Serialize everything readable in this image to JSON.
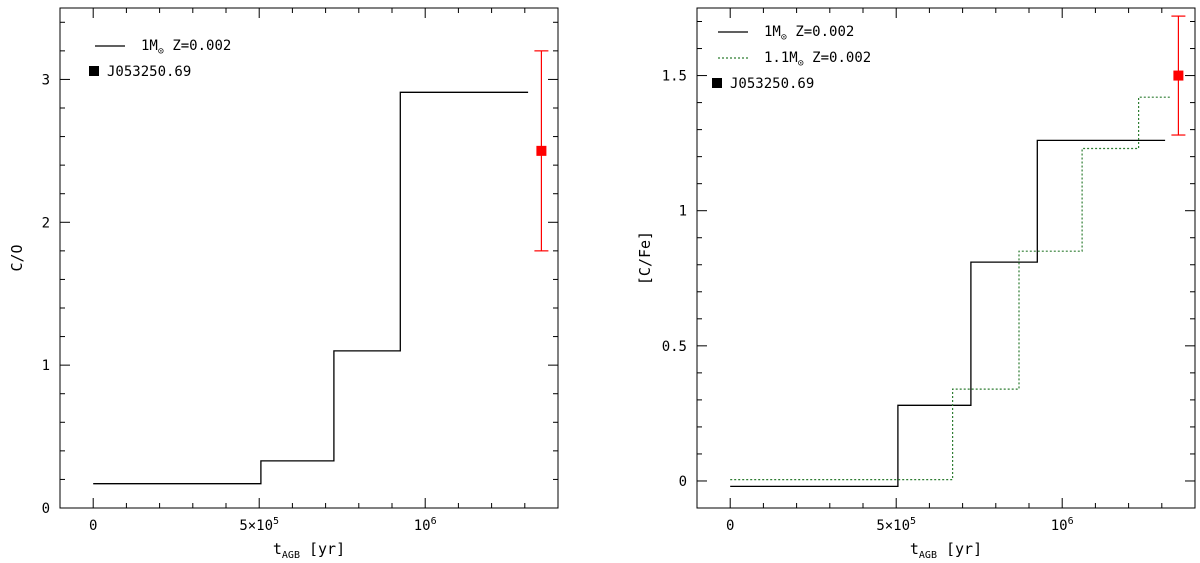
{
  "chart_data": [
    {
      "id": "left",
      "type": "line",
      "step": true,
      "xlabel": "t",
      "xlabel_sub": "AGB",
      "xlabel_unit": "[yr]",
      "ylabel": "C/O",
      "xlim": [
        -100000,
        1400000
      ],
      "ylim": [
        0,
        3.5
      ],
      "xticks": [
        {
          "value": 0,
          "label": "0"
        },
        {
          "value": 500000,
          "label": "5×10",
          "sup": "5"
        },
        {
          "value": 1000000,
          "label": "10",
          "sup": "6"
        }
      ],
      "yticks": [
        {
          "value": 0,
          "label": "0"
        },
        {
          "value": 1,
          "label": "1"
        },
        {
          "value": 2,
          "label": "2"
        },
        {
          "value": 3,
          "label": "3"
        }
      ],
      "series": [
        {
          "name": "1M☉ Z=0.002",
          "name_parts": {
            "pre": "1M",
            "sub": "⊙",
            "post": " Z=0.002"
          },
          "color": "#000000",
          "dash": "",
          "x": [
            0,
            505000,
            505000,
            725000,
            725000,
            925000,
            925000,
            1310000
          ],
          "y": [
            0.17,
            0.17,
            0.33,
            0.33,
            1.1,
            1.1,
            2.91,
            2.91
          ]
        }
      ],
      "observation": {
        "name": "J053250.69",
        "x": 1350000,
        "y": 2.5,
        "err_low": 1.8,
        "err_high": 3.2,
        "color": "#ff0000"
      }
    },
    {
      "id": "right",
      "type": "line",
      "step": true,
      "xlabel": "t",
      "xlabel_sub": "AGB",
      "xlabel_unit": "[yr]",
      "ylabel": "[C/Fe]",
      "xlim": [
        -100000,
        1400000
      ],
      "ylim": [
        -0.1,
        1.75
      ],
      "xticks": [
        {
          "value": 0,
          "label": "0"
        },
        {
          "value": 500000,
          "label": "5×10",
          "sup": "5"
        },
        {
          "value": 1000000,
          "label": "10",
          "sup": "6"
        }
      ],
      "yticks": [
        {
          "value": 0,
          "label": "0"
        },
        {
          "value": 0.5,
          "label": "0.5"
        },
        {
          "value": 1,
          "label": "1"
        },
        {
          "value": 1.5,
          "label": "1.5"
        }
      ],
      "series": [
        {
          "name": "1M☉ Z=0.002",
          "name_parts": {
            "pre": "1M",
            "sub": "⊙",
            "post": " Z=0.002"
          },
          "color": "#000000",
          "dash": "",
          "x": [
            0,
            505000,
            505000,
            725000,
            725000,
            925000,
            925000,
            1310000
          ],
          "y": [
            -0.02,
            -0.02,
            0.28,
            0.28,
            0.81,
            0.81,
            1.26,
            1.26
          ]
        },
        {
          "name": "1.1M☉ Z=0.002",
          "name_parts": {
            "pre": "1.1M",
            "sub": "⊙",
            "post": " Z=0.002"
          },
          "color": "#2e7d32",
          "dash": "2,2",
          "x": [
            0,
            670000,
            670000,
            870000,
            870000,
            1060000,
            1060000,
            1230000,
            1230000,
            1330000
          ],
          "y": [
            0.005,
            0.005,
            0.34,
            0.34,
            0.85,
            0.85,
            1.23,
            1.23,
            1.42,
            1.42
          ]
        }
      ],
      "observation": {
        "name": "J053250.69",
        "x": 1350000,
        "y": 1.5,
        "err_low": 1.28,
        "err_high": 1.72,
        "color": "#ff0000"
      }
    }
  ]
}
